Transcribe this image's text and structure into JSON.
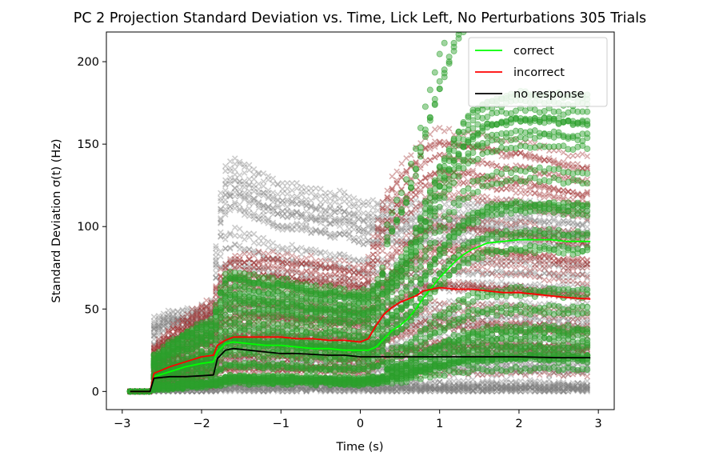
{
  "chart_data": {
    "type": "line",
    "title": "PC 2 Projection Standard Deviation vs. Time, Lick Left, No Perturbations 305 Trials",
    "xlabel": "Time (s)",
    "ylabel": "Standard Deviation σ(t) (Hz)",
    "xlim": [
      -3.2,
      3.2
    ],
    "ylim": [
      -11,
      218
    ],
    "xticks": [
      -3,
      -2,
      -1,
      0,
      1,
      2,
      3
    ],
    "xtick_labels": [
      "−3",
      "−2",
      "−1",
      "0",
      "1",
      "2",
      "3"
    ],
    "yticks": [
      0,
      50,
      100,
      150,
      200
    ],
    "ytick_labels": [
      "0",
      "50",
      "100",
      "150",
      "200"
    ],
    "legend_position": "top-right",
    "series": [
      {
        "name": "correct",
        "color": "#00ff00",
        "x": [
          -2.9,
          -2.65,
          -2.6,
          -2.4,
          -2.2,
          -2.0,
          -1.85,
          -1.8,
          -1.7,
          -1.6,
          -1.4,
          -1.2,
          -1.0,
          -0.8,
          -0.6,
          -0.4,
          -0.2,
          0.0,
          0.1,
          0.2,
          0.3,
          0.4,
          0.5,
          0.6,
          0.7,
          0.8,
          0.9,
          1.0,
          1.1,
          1.2,
          1.3,
          1.4,
          1.5,
          1.6,
          1.8,
          2.0,
          2.2,
          2.4,
          2.6,
          2.9
        ],
        "y": [
          0,
          0,
          9,
          12,
          15,
          17,
          18,
          24,
          29,
          30,
          29,
          28,
          28,
          27,
          26,
          26,
          25,
          25,
          25,
          27,
          32,
          37,
          40,
          44,
          50,
          57,
          63,
          69,
          74,
          79,
          83,
          86,
          88,
          90,
          91,
          92,
          92,
          92,
          91,
          91
        ]
      },
      {
        "name": "incorrect",
        "color": "#ff0000",
        "x": [
          -2.9,
          -2.65,
          -2.6,
          -2.4,
          -2.2,
          -2.0,
          -1.85,
          -1.8,
          -1.7,
          -1.6,
          -1.4,
          -1.2,
          -1.0,
          -0.8,
          -0.6,
          -0.4,
          -0.2,
          0.0,
          0.1,
          0.2,
          0.3,
          0.4,
          0.5,
          0.6,
          0.7,
          0.8,
          0.9,
          1.0,
          1.2,
          1.4,
          1.6,
          1.8,
          2.0,
          2.2,
          2.4,
          2.6,
          2.9
        ],
        "y": [
          0,
          0,
          11,
          15,
          18,
          21,
          22,
          28,
          31,
          33,
          33,
          33,
          33,
          32,
          32,
          31,
          31,
          30,
          32,
          40,
          47,
          51,
          54,
          56,
          58,
          61,
          62,
          63,
          62,
          62,
          61,
          60,
          60,
          59,
          58,
          57,
          56
        ]
      },
      {
        "name": "no response",
        "color": "#000000",
        "x": [
          -2.9,
          -2.65,
          -2.6,
          -2.4,
          -2.2,
          -2.0,
          -1.85,
          -1.8,
          -1.7,
          -1.6,
          -1.4,
          -1.2,
          -1.0,
          -0.8,
          -0.6,
          -0.4,
          -0.2,
          0.0,
          0.2,
          0.5,
          1.0,
          1.5,
          2.0,
          2.5,
          2.9
        ],
        "y": [
          0,
          0,
          8,
          9,
          9,
          9.5,
          10,
          20,
          25,
          26,
          25,
          24,
          23,
          23,
          22.5,
          22,
          22,
          21,
          21,
          21,
          21,
          21,
          21,
          20.5,
          20.5
        ]
      }
    ],
    "scatter_groups": [
      {
        "group": "correct",
        "marker": "circle",
        "color": "#2ca02c"
      },
      {
        "group": "incorrect",
        "marker": "x",
        "color": "#a03030"
      },
      {
        "group": "no response",
        "marker": "x",
        "color": "#808080"
      }
    ]
  }
}
